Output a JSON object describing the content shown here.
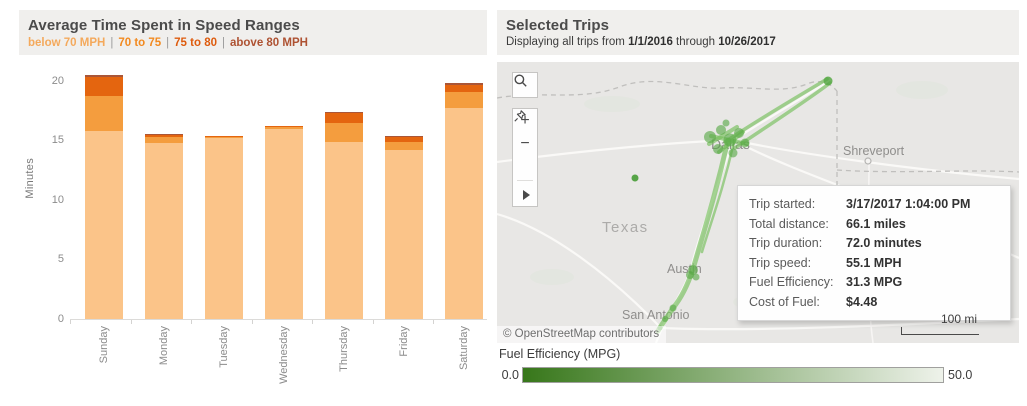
{
  "chart_data": {
    "type": "bar",
    "stacked": true,
    "title": "Average Time Spent in Speed Ranges",
    "ylabel": "Minutes",
    "ylim": [
      0,
      20
    ],
    "yticks": [
      0,
      5,
      10,
      15,
      20
    ],
    "grid": false,
    "legend_position": "top",
    "categories": [
      "Sunday",
      "Monday",
      "Tuesday",
      "Wednesday",
      "Thursday",
      "Friday",
      "Saturday"
    ],
    "series": [
      {
        "name": "below 70 MPH",
        "color": "#FBC489",
        "text_color": "#F4A95C",
        "values": [
          15.8,
          14.8,
          15.25,
          16.0,
          14.9,
          14.2,
          17.7
        ]
      },
      {
        "name": "70 to 75",
        "color": "#F49D3E",
        "text_color": "#F28A20",
        "values": [
          2.9,
          0.5,
          0.1,
          0.15,
          1.6,
          0.65,
          1.4
        ]
      },
      {
        "name": "75 to 80",
        "color": "#E4650F",
        "text_color": "#DE5B0D",
        "values": [
          1.6,
          0.2,
          0.05,
          0.1,
          0.8,
          0.45,
          0.55
        ]
      },
      {
        "name": "above 80 MPH",
        "color": "#AA5637",
        "text_color": "#AE5232",
        "values": [
          0.2,
          0.05,
          0.0,
          0.0,
          0.1,
          0.05,
          0.15
        ]
      }
    ]
  },
  "left_panel": {
    "title": "Average Time Spent in Speed Ranges",
    "legend_separator": "|"
  },
  "right_panel": {
    "title": "Selected Trips",
    "subtitle": {
      "prefix": "Displaying all trips from ",
      "start_date": "1/1/2016",
      "middle": " through ",
      "end_date": "10/26/2017"
    },
    "map": {
      "labels": {
        "dallas": "Dallas",
        "shreveport": "Shreveport",
        "texas": "Texas",
        "austin": "Austin",
        "san_antonio": "San Antonio"
      },
      "toolbar": {
        "zoom_in": "+",
        "zoom_out": "−"
      },
      "attribution": "© OpenStreetMap contributors",
      "scale_label": "100 mi",
      "tooltip": {
        "rows": [
          {
            "label": "Trip started:",
            "value": "3/17/2017 1:04:00 PM"
          },
          {
            "label": "Total distance:",
            "value": "66.1 miles"
          },
          {
            "label": "Trip duration:",
            "value": "72.0 minutes"
          },
          {
            "label": "Trip speed:",
            "value": "55.1 MPH"
          },
          {
            "label": "Fuel Efficiency:",
            "value": "31.3 MPG"
          },
          {
            "label": "Cost of Fuel:",
            "value": "$4.48"
          }
        ]
      }
    },
    "fuel_legend": {
      "title": "Fuel Efficiency (MPG)",
      "min": "0.0",
      "max": "50.0",
      "gradient_start": "#37771A",
      "gradient_end": "#EEF2EA"
    }
  },
  "colors": {
    "header_bg": "#F0EFED",
    "map_bg": "#E8E7E5",
    "route_green": "#6FBC58",
    "title_text": "#4B4B4B"
  }
}
